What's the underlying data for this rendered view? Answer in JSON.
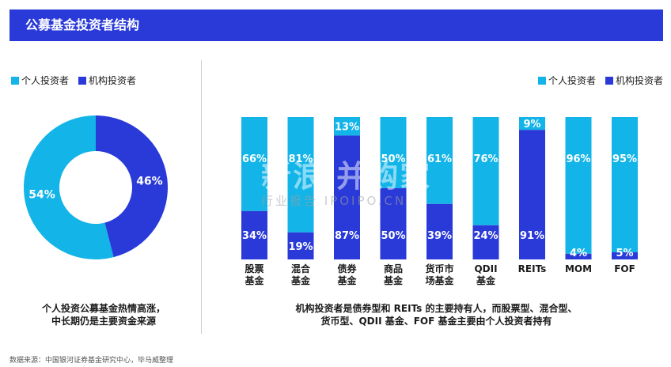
{
  "header": {
    "title": "公募基金投资者结构"
  },
  "legend": {
    "individual": "个人投资者",
    "institutional": "机构投资者"
  },
  "colors": {
    "individual": "#13b4e8",
    "institutional": "#2a3ad8",
    "header": "#2a3ad8"
  },
  "captions": {
    "left": [
      "个人投资公募基金热情高涨，",
      "中长期仍是主要资金来源"
    ],
    "right": [
      "机构投资者是债券型和 REITs 的主要持有人，而股票型、混合型、",
      "货币型、QDII 基金、FOF 基金主要由个人投资者持有"
    ]
  },
  "source": "数据来源：中国银河证券基金研究中心，毕马威整理",
  "watermark": {
    "title": "新浪 并购家",
    "subtitle": "行业报告 IPOIPO.CN"
  },
  "chart_data": [
    {
      "type": "pie",
      "categories": [
        "个人投资者",
        "机构投资者"
      ],
      "values": [
        54,
        46
      ],
      "labels": [
        "54%",
        "46%"
      ]
    },
    {
      "type": "bar",
      "stacked": true,
      "categories": [
        [
          "股票",
          "基金"
        ],
        [
          "混合",
          "基金"
        ],
        [
          "债券",
          "基金"
        ],
        [
          "商品",
          "基金"
        ],
        [
          "货币市",
          "场基金"
        ],
        [
          "QDII",
          "基金"
        ],
        [
          "REITs"
        ],
        [
          "MOM"
        ],
        [
          "FOF"
        ]
      ],
      "series": [
        {
          "name": "个人投资者",
          "values": [
            66,
            81,
            13,
            50,
            61,
            76,
            9,
            96,
            95
          ]
        },
        {
          "name": "机构投资者",
          "values": [
            34,
            19,
            87,
            50,
            39,
            24,
            91,
            4,
            5
          ]
        }
      ],
      "ylim": [
        0,
        100
      ]
    }
  ]
}
